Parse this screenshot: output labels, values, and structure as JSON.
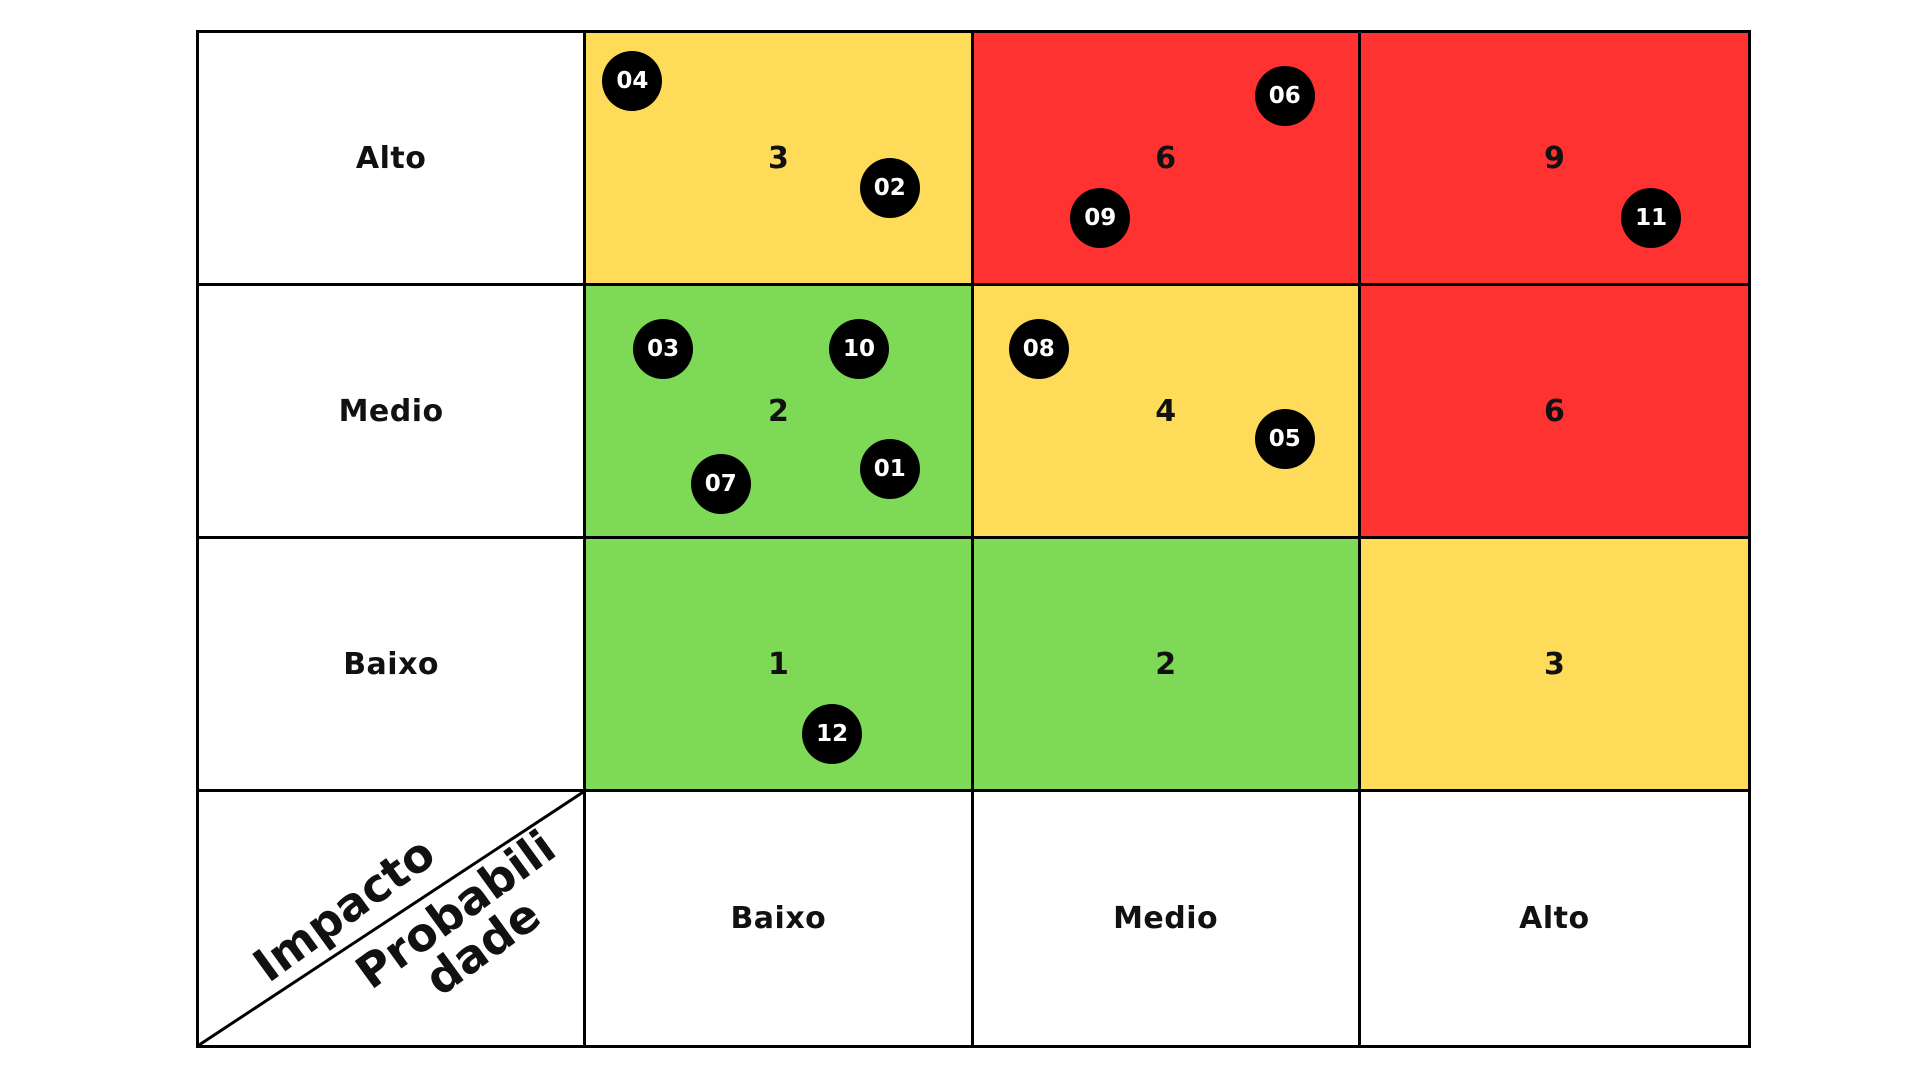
{
  "matrix": {
    "corner": {
      "impact_label": "Impacto",
      "probability_label": "Probabili dade"
    },
    "row_labels": [
      "Alto",
      "Medio",
      "Baixo"
    ],
    "column_labels": [
      "Baixo",
      "Medio",
      "Alto"
    ],
    "cells": [
      [
        {
          "score": "3",
          "color": "#FEDC5A",
          "markers": [
            "04",
            "02"
          ]
        },
        {
          "score": "6",
          "color": "#FF3232",
          "markers": [
            "06",
            "09"
          ]
        },
        {
          "score": "9",
          "color": "#FF3232",
          "markers": [
            "11"
          ]
        }
      ],
      [
        {
          "score": "2",
          "color": "#7ED957",
          "markers": [
            "03",
            "10",
            "07",
            "01"
          ]
        },
        {
          "score": "4",
          "color": "#FEDC5A",
          "markers": [
            "08",
            "05"
          ]
        },
        {
          "score": "6",
          "color": "#FF3232",
          "markers": []
        }
      ],
      [
        {
          "score": "1",
          "color": "#7ED957",
          "markers": [
            "12"
          ]
        },
        {
          "score": "2",
          "color": "#7ED957",
          "markers": []
        },
        {
          "score": "3",
          "color": "#FEDC5A",
          "markers": []
        }
      ]
    ]
  }
}
